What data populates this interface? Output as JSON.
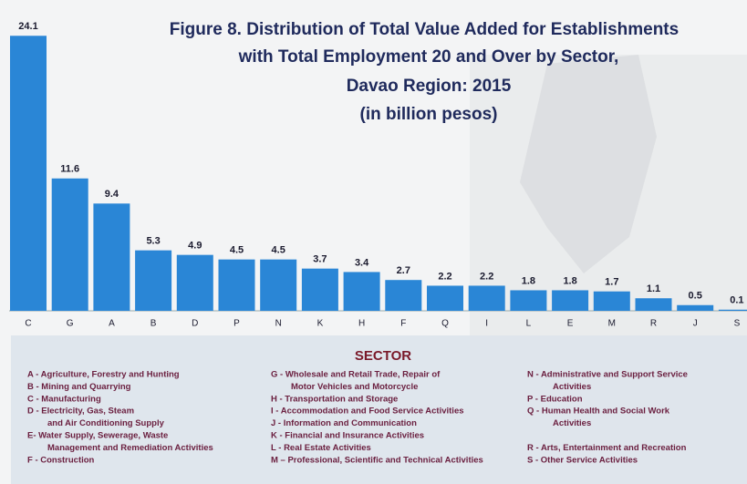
{
  "chart_data": {
    "type": "bar",
    "title": [
      "Figure 8.  Distribution of Total Value Added for Establishments",
      "with Total Employment 20 and Over by Sector,",
      "Davao Region: 2015",
      "(in billion pesos)"
    ],
    "categories": [
      "C",
      "G",
      "A",
      "B",
      "D",
      "P",
      "N",
      "K",
      "H",
      "F",
      "Q",
      "I",
      "L",
      "E",
      "M",
      "R",
      "J",
      "S"
    ],
    "values": [
      24.1,
      11.6,
      9.4,
      5.3,
      4.9,
      4.5,
      4.5,
      3.7,
      3.4,
      2.7,
      2.2,
      2.2,
      1.8,
      1.8,
      1.7,
      1.1,
      0.5,
      0.1
    ],
    "color": "#2a86d6",
    "ylim": [
      0,
      25
    ],
    "legend_title": "SECTOR",
    "legend_columns": [
      [
        "A - Agriculture, Forestry and Hunting",
        "B - Mining and Quarrying",
        "C - Manufacturing",
        "D - Electricity, Gas, Steam",
        "and Air Conditioning Supply",
        "E- Water Supply, Sewerage, Waste",
        "Management and Remediation Activities",
        "F - Construction"
      ],
      [
        "G - Wholesale and Retail Trade, Repair of",
        "Motor Vehicles and Motorcycle",
        "H - Transportation and Storage",
        "I - Accommodation and Food Service Activities",
        "J - Information and Communication",
        "K - Financial and Insurance Activities",
        "L - Real Estate Activities",
        "M – Professional, Scientific and Technical Activities"
      ],
      [
        "N - Administrative and Support Service",
        "Activities",
        "P - Education",
        "Q - Human Health and Social Work",
        "Activities",
        "R - Arts, Entertainment and Recreation",
        "S - Other Service Activities"
      ]
    ]
  }
}
